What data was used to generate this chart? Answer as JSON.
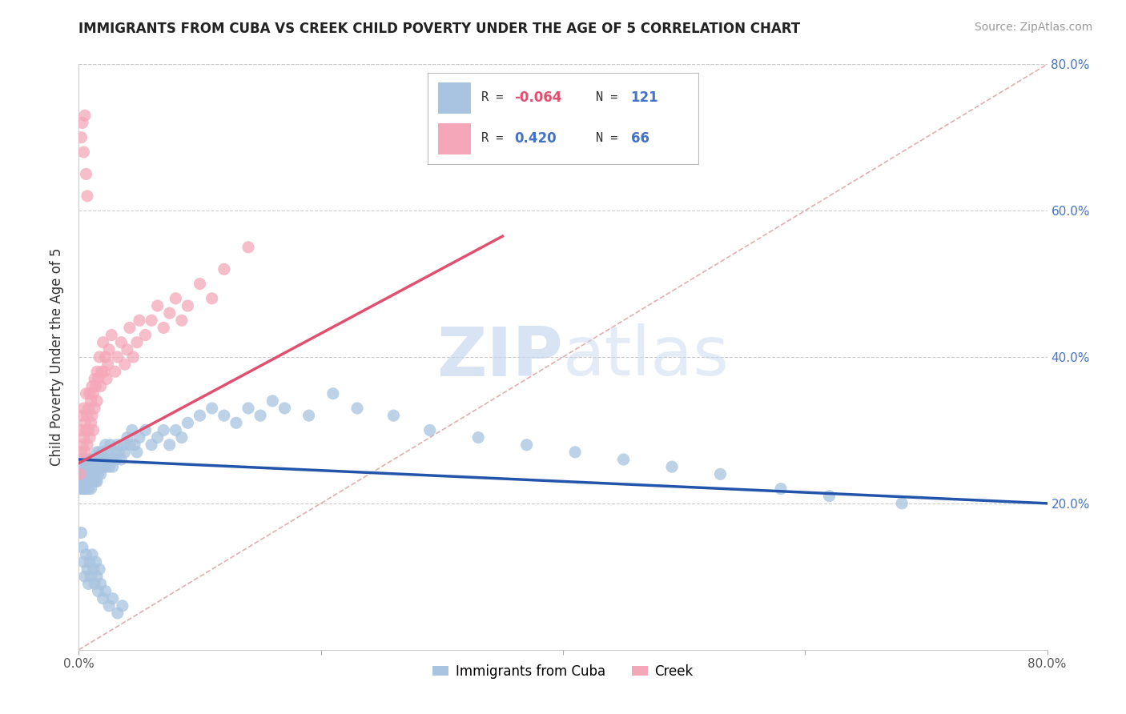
{
  "title": "IMMIGRANTS FROM CUBA VS CREEK CHILD POVERTY UNDER THE AGE OF 5 CORRELATION CHART",
  "source": "Source: ZipAtlas.com",
  "ylabel": "Child Poverty Under the Age of 5",
  "x_min": 0.0,
  "x_max": 0.8,
  "y_min": 0.0,
  "y_max": 0.8,
  "x_ticks": [
    0.0,
    0.2,
    0.4,
    0.6,
    0.8
  ],
  "x_tick_labels": [
    "0.0%",
    "20.0%",
    "40.0%",
    "60.0%",
    "80.0%"
  ],
  "y_ticks_right": [
    0.2,
    0.4,
    0.6,
    0.8
  ],
  "y_tick_labels_right": [
    "20.0%",
    "40.0%",
    "60.0%",
    "80.0%"
  ],
  "color_blue": "#a8c4e0",
  "color_pink": "#f4a7b9",
  "color_blue_line": "#2255aa",
  "color_pink_line": "#e05070",
  "color_ref_line": "#e0b0b0",
  "legend_entry1": "Immigrants from Cuba",
  "legend_entry2": "Creek",
  "watermark_zip": "ZIP",
  "watermark_atlas": "atlas",
  "background_color": "#ffffff",
  "blue_scatter_x": [
    0.001,
    0.001,
    0.002,
    0.002,
    0.003,
    0.003,
    0.003,
    0.004,
    0.004,
    0.004,
    0.005,
    0.005,
    0.005,
    0.006,
    0.006,
    0.006,
    0.007,
    0.007,
    0.008,
    0.008,
    0.008,
    0.009,
    0.009,
    0.01,
    0.01,
    0.01,
    0.011,
    0.011,
    0.012,
    0.012,
    0.013,
    0.013,
    0.014,
    0.014,
    0.015,
    0.015,
    0.015,
    0.016,
    0.016,
    0.017,
    0.017,
    0.018,
    0.018,
    0.019,
    0.02,
    0.02,
    0.021,
    0.022,
    0.022,
    0.023,
    0.024,
    0.025,
    0.026,
    0.027,
    0.028,
    0.03,
    0.031,
    0.032,
    0.033,
    0.035,
    0.037,
    0.038,
    0.04,
    0.042,
    0.044,
    0.046,
    0.048,
    0.05,
    0.055,
    0.06,
    0.065,
    0.07,
    0.075,
    0.08,
    0.085,
    0.09,
    0.1,
    0.11,
    0.12,
    0.13,
    0.14,
    0.15,
    0.16,
    0.17,
    0.19,
    0.21,
    0.23,
    0.26,
    0.29,
    0.33,
    0.37,
    0.41,
    0.45,
    0.49,
    0.53,
    0.58,
    0.62,
    0.68,
    0.002,
    0.003,
    0.004,
    0.005,
    0.006,
    0.007,
    0.008,
    0.009,
    0.01,
    0.011,
    0.012,
    0.013,
    0.014,
    0.015,
    0.016,
    0.017,
    0.018,
    0.02,
    0.022,
    0.025,
    0.028,
    0.032,
    0.036
  ],
  "blue_scatter_y": [
    0.24,
    0.22,
    0.26,
    0.23,
    0.25,
    0.22,
    0.24,
    0.26,
    0.23,
    0.25,
    0.24,
    0.22,
    0.26,
    0.25,
    0.23,
    0.22,
    0.26,
    0.24,
    0.25,
    0.23,
    0.22,
    0.26,
    0.24,
    0.25,
    0.23,
    0.22,
    0.26,
    0.24,
    0.25,
    0.23,
    0.26,
    0.24,
    0.25,
    0.23,
    0.27,
    0.25,
    0.23,
    0.26,
    0.24,
    0.27,
    0.25,
    0.26,
    0.24,
    0.25,
    0.27,
    0.25,
    0.26,
    0.28,
    0.25,
    0.26,
    0.27,
    0.25,
    0.28,
    0.26,
    0.25,
    0.27,
    0.26,
    0.28,
    0.27,
    0.26,
    0.28,
    0.27,
    0.29,
    0.28,
    0.3,
    0.28,
    0.27,
    0.29,
    0.3,
    0.28,
    0.29,
    0.3,
    0.28,
    0.3,
    0.29,
    0.31,
    0.32,
    0.33,
    0.32,
    0.31,
    0.33,
    0.32,
    0.34,
    0.33,
    0.32,
    0.35,
    0.33,
    0.32,
    0.3,
    0.29,
    0.28,
    0.27,
    0.26,
    0.25,
    0.24,
    0.22,
    0.21,
    0.2,
    0.16,
    0.14,
    0.12,
    0.1,
    0.13,
    0.11,
    0.09,
    0.12,
    0.1,
    0.13,
    0.11,
    0.09,
    0.12,
    0.1,
    0.08,
    0.11,
    0.09,
    0.07,
    0.08,
    0.06,
    0.07,
    0.05,
    0.06
  ],
  "pink_scatter_x": [
    0.001,
    0.002,
    0.002,
    0.003,
    0.003,
    0.004,
    0.004,
    0.005,
    0.005,
    0.006,
    0.006,
    0.007,
    0.007,
    0.008,
    0.008,
    0.009,
    0.009,
    0.01,
    0.01,
    0.011,
    0.011,
    0.012,
    0.012,
    0.013,
    0.013,
    0.014,
    0.015,
    0.015,
    0.016,
    0.017,
    0.018,
    0.019,
    0.02,
    0.021,
    0.022,
    0.023,
    0.024,
    0.025,
    0.027,
    0.03,
    0.032,
    0.035,
    0.038,
    0.04,
    0.042,
    0.045,
    0.048,
    0.05,
    0.055,
    0.06,
    0.065,
    0.07,
    0.075,
    0.08,
    0.085,
    0.09,
    0.1,
    0.11,
    0.12,
    0.14,
    0.002,
    0.003,
    0.004,
    0.005,
    0.006,
    0.007
  ],
  "pink_scatter_y": [
    0.24,
    0.27,
    0.3,
    0.28,
    0.32,
    0.29,
    0.33,
    0.31,
    0.27,
    0.3,
    0.35,
    0.32,
    0.28,
    0.33,
    0.3,
    0.35,
    0.29,
    0.34,
    0.31,
    0.36,
    0.32,
    0.35,
    0.3,
    0.37,
    0.33,
    0.36,
    0.38,
    0.34,
    0.37,
    0.4,
    0.36,
    0.38,
    0.42,
    0.38,
    0.4,
    0.37,
    0.39,
    0.41,
    0.43,
    0.38,
    0.4,
    0.42,
    0.39,
    0.41,
    0.44,
    0.4,
    0.42,
    0.45,
    0.43,
    0.45,
    0.47,
    0.44,
    0.46,
    0.48,
    0.45,
    0.47,
    0.5,
    0.48,
    0.52,
    0.55,
    0.7,
    0.72,
    0.68,
    0.73,
    0.65,
    0.62
  ],
  "blue_trend_x": [
    0.0,
    0.8
  ],
  "blue_trend_y": [
    0.26,
    0.2
  ],
  "pink_trend_x": [
    0.0,
    0.35
  ],
  "pink_trend_y": [
    0.255,
    0.565
  ],
  "ref_line_x": [
    0.0,
    0.8
  ],
  "ref_line_y": [
    0.0,
    0.8
  ]
}
